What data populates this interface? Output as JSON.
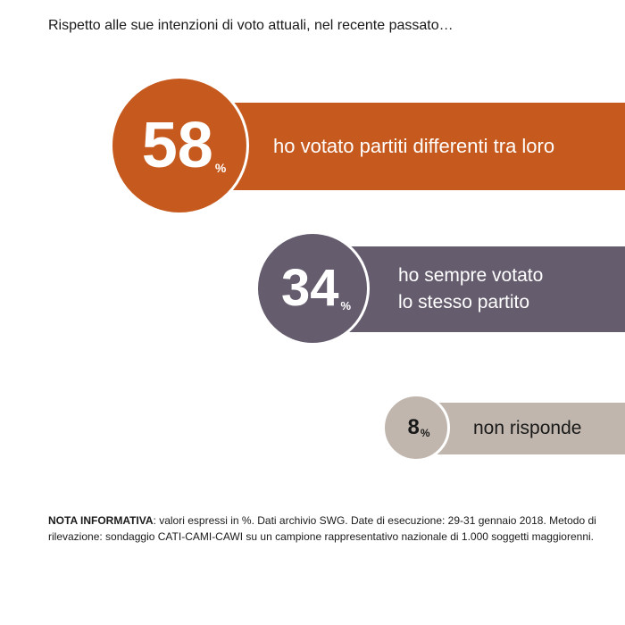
{
  "title": "Rispetto alle sue intenzioni di voto attuali, nel recente passato…",
  "chart_data": {
    "type": "bar",
    "categories": [
      "ho votato partiti differenti tra loro",
      "ho sempre votato lo stesso partito",
      "non risponde"
    ],
    "values": [
      58,
      34,
      8
    ],
    "unit": "%",
    "colors": [
      "#c65a1e",
      "#655c6e",
      "#c0b6ad"
    ],
    "items": [
      {
        "value": "58",
        "unit": "%",
        "label": "ho votato partiti differenti tra loro",
        "label_lines": [
          "ho votato partiti differenti tra loro"
        ],
        "color": "#c65a1e"
      },
      {
        "value": "34",
        "unit": "%",
        "label": "ho sempre votato lo stesso partito",
        "label_lines": [
          "ho sempre votato",
          "lo stesso partito"
        ],
        "color": "#655c6e"
      },
      {
        "value": "8",
        "unit": "%",
        "label": "non risponde",
        "label_lines": [
          "non risponde"
        ],
        "color": "#c0b6ad"
      }
    ]
  },
  "note": {
    "heading": "NOTA INFORMATIVA",
    "text": ": valori espressi in %. Dati archivio SWG. Date di esecuzione: 29-31 gennaio 2018. Metodo di rilevazione: sondaggio CATI-CAMI-CAWI su un campione rappresentativo nazionale di 1.000 soggetti maggiorenni."
  }
}
